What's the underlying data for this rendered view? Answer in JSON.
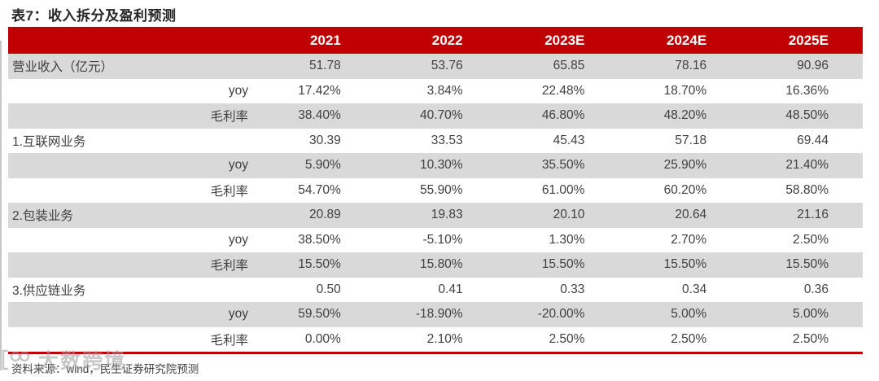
{
  "title": "表7：收入拆分及盈利预测",
  "table": {
    "columns": [
      "2021",
      "2022",
      "2023E",
      "2024E",
      "2025E"
    ],
    "rows": [
      {
        "label": "营业收入（亿元）",
        "sub": "",
        "values": [
          "51.78",
          "53.76",
          "65.85",
          "78.16",
          "90.96"
        ]
      },
      {
        "label": "",
        "sub": "yoy",
        "values": [
          "17.42%",
          "3.84%",
          "22.48%",
          "18.70%",
          "16.36%"
        ]
      },
      {
        "label": "",
        "sub": "毛利率",
        "values": [
          "38.40%",
          "40.70%",
          "46.80%",
          "48.20%",
          "48.50%"
        ]
      },
      {
        "label": "1.互联网业务",
        "sub": "",
        "values": [
          "30.39",
          "33.53",
          "45.43",
          "57.18",
          "69.44"
        ]
      },
      {
        "label": "",
        "sub": "yoy",
        "values": [
          "5.90%",
          "10.30%",
          "35.50%",
          "25.90%",
          "21.40%"
        ]
      },
      {
        "label": "",
        "sub": "毛利率",
        "values": [
          "54.70%",
          "55.90%",
          "61.00%",
          "60.20%",
          "58.80%"
        ]
      },
      {
        "label": "2.包装业务",
        "sub": "",
        "values": [
          "20.89",
          "19.83",
          "20.10",
          "20.64",
          "21.16"
        ]
      },
      {
        "label": "",
        "sub": "yoy",
        "values": [
          "38.50%",
          "-5.10%",
          "1.30%",
          "2.70%",
          "2.50%"
        ]
      },
      {
        "label": "",
        "sub": "毛利率",
        "values": [
          "15.50%",
          "15.80%",
          "15.50%",
          "15.50%",
          "15.50%"
        ]
      },
      {
        "label": "3.供应链业务",
        "sub": "",
        "values": [
          "0.50",
          "0.41",
          "0.33",
          "0.34",
          "0.36"
        ]
      },
      {
        "label": "",
        "sub": "yoy",
        "values": [
          "59.50%",
          "-18.90%",
          "-20.00%",
          "5.00%",
          "5.00%"
        ]
      },
      {
        "label": "",
        "sub": "毛利率",
        "values": [
          "0.00%",
          "2.10%",
          "2.50%",
          "2.50%",
          "2.50%"
        ]
      }
    ]
  },
  "footer": {
    "source_text": "资料来源：wind，民生证券研究院预测"
  },
  "watermark": {
    "text": "大数跨境",
    "logo": "infinity-bracket-logo"
  },
  "colors": {
    "header_bg": "#c00000",
    "row_alt_bg": "#d9d9d9",
    "accent_line": "#c00000",
    "cell_text": "#404040",
    "title_text": "#262626"
  }
}
